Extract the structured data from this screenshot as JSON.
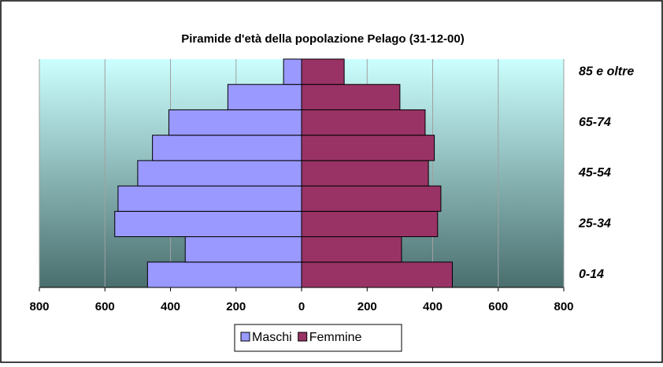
{
  "chart_data": {
    "type": "bar",
    "orientation": "horizontal",
    "stacked": false,
    "title": "Piramide d'età della popolazione Pelago (31-12-00)",
    "categories": [
      "0-14",
      null,
      "25-34",
      null,
      "45-54",
      null,
      "65-74",
      null,
      "85 e oltre"
    ],
    "series": [
      {
        "name": "Maschi",
        "color": "#9999ff",
        "values": [
          -470,
          -355,
          -570,
          -560,
          -500,
          -455,
          -405,
          -225,
          -55
        ]
      },
      {
        "name": "Femmine",
        "color": "#993366",
        "values": [
          460,
          305,
          415,
          425,
          387,
          405,
          377,
          300,
          130
        ]
      }
    ],
    "xlim": [
      -800,
      800
    ],
    "xticks": [
      {
        "value": -800,
        "label": "800"
      },
      {
        "value": -600,
        "label": "600"
      },
      {
        "value": -400,
        "label": "400"
      },
      {
        "value": -200,
        "label": "200"
      },
      0,
      200,
      400,
      600,
      800
    ],
    "grid": true,
    "legend": "bottom"
  }
}
